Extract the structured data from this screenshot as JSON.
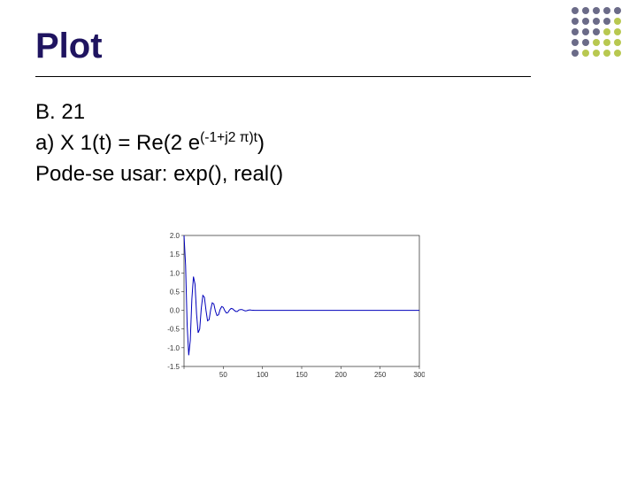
{
  "title": "Plot",
  "body": {
    "line1": "B. 21",
    "line2_pre": "a) X 1(t) = Re(2 e",
    "line2_exp": "(-1+j2 π)t",
    "line2_post": ")",
    "line3": "Pode-se usar: exp(), real()"
  },
  "dots": {
    "dark": "#6b6b88",
    "light": "#b8c850",
    "pattern": [
      [
        "dark",
        "dark",
        "dark",
        "dark",
        "dark"
      ],
      [
        "dark",
        "dark",
        "dark",
        "dark",
        "light"
      ],
      [
        "dark",
        "dark",
        "dark",
        "light",
        "light"
      ],
      [
        "dark",
        "dark",
        "light",
        "light",
        "light"
      ],
      [
        "dark",
        "light",
        "light",
        "light",
        "light"
      ]
    ]
  },
  "chart": {
    "type": "line",
    "line_color": "#0000bb",
    "background_color": "#ffffff",
    "axis_color": "#000000",
    "label_fontsize": 8,
    "label_color": "#333333",
    "ylim": [
      -1.5,
      2.0
    ],
    "ytick_step": 0.5,
    "yticks": [
      -1.5,
      -1.0,
      -0.5,
      0.0,
      0.5,
      1.0,
      1.5,
      2.0
    ],
    "xlim": [
      0,
      300
    ],
    "xticks": [
      0,
      50,
      100,
      150,
      200,
      250,
      300
    ],
    "xtick_labels": [
      "",
      "50",
      "100",
      "150",
      "200",
      "250",
      "300"
    ],
    "data": [
      [
        0,
        2.0
      ],
      [
        2,
        1.2
      ],
      [
        4,
        -0.4
      ],
      [
        6,
        -1.2
      ],
      [
        8,
        -0.8
      ],
      [
        10,
        0.3
      ],
      [
        12,
        0.9
      ],
      [
        14,
        0.7
      ],
      [
        16,
        -0.1
      ],
      [
        18,
        -0.6
      ],
      [
        20,
        -0.5
      ],
      [
        22,
        0.05
      ],
      [
        24,
        0.4
      ],
      [
        26,
        0.35
      ],
      [
        28,
        0.0
      ],
      [
        30,
        -0.28
      ],
      [
        32,
        -0.25
      ],
      [
        34,
        0.02
      ],
      [
        36,
        0.2
      ],
      [
        38,
        0.17
      ],
      [
        40,
        -0.02
      ],
      [
        42,
        -0.14
      ],
      [
        44,
        -0.12
      ],
      [
        46,
        0.02
      ],
      [
        48,
        0.1
      ],
      [
        50,
        0.08
      ],
      [
        52,
        -0.01
      ],
      [
        54,
        -0.07
      ],
      [
        56,
        -0.06
      ],
      [
        58,
        0.01
      ],
      [
        60,
        0.05
      ],
      [
        62,
        0.04
      ],
      [
        64,
        0.0
      ],
      [
        66,
        -0.03
      ],
      [
        68,
        -0.03
      ],
      [
        70,
        0.01
      ],
      [
        72,
        0.02
      ],
      [
        74,
        0.02
      ],
      [
        76,
        0.0
      ],
      [
        78,
        -0.015
      ],
      [
        80,
        -0.01
      ],
      [
        82,
        0.005
      ],
      [
        84,
        0.01
      ],
      [
        86,
        0.005
      ],
      [
        90,
        0.0
      ],
      [
        100,
        0.0
      ],
      [
        150,
        0.0
      ],
      [
        200,
        0.0
      ],
      [
        250,
        0.0
      ],
      [
        300,
        0.0
      ]
    ]
  }
}
